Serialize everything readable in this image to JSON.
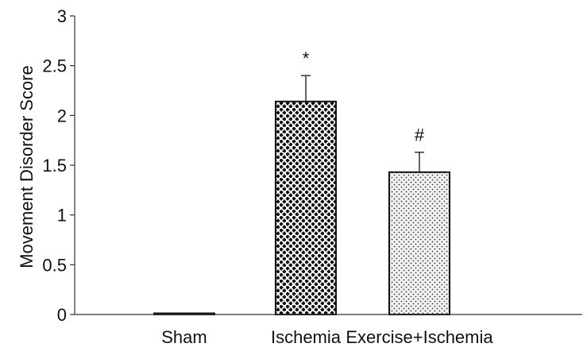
{
  "chart_data": {
    "type": "bar",
    "title": "",
    "xlabel": "",
    "ylabel": "Movement Disorder Score",
    "ylim": [
      0,
      3
    ],
    "yticks": [
      {
        "value": 0,
        "label": "0"
      },
      {
        "value": 0.5,
        "label": "0.5"
      },
      {
        "value": 1,
        "label": "1"
      },
      {
        "value": 1.5,
        "label": "1.5"
      },
      {
        "value": 2,
        "label": "2"
      },
      {
        "value": 2.5,
        "label": "2.5"
      },
      {
        "value": 3,
        "label": "3"
      }
    ],
    "categories": [
      "Sham",
      "Ischemia",
      "Exercise+Ischemia"
    ],
    "values": [
      0,
      2.14,
      1.43
    ],
    "error": [
      0,
      0.26,
      0.2
    ],
    "annotations": [
      "",
      "*",
      "#"
    ],
    "patterns": [
      "none",
      "checkerboard",
      "stipple"
    ],
    "grid": false,
    "legend": "none"
  }
}
